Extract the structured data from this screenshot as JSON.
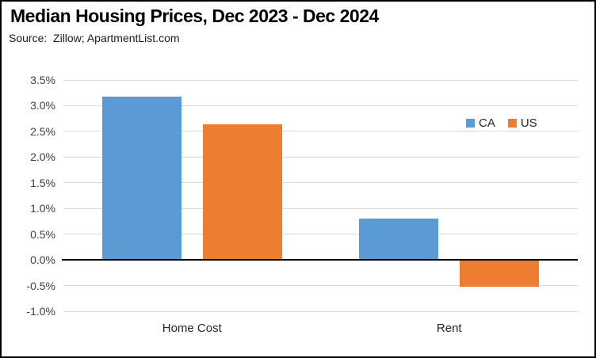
{
  "header": {
    "title": "Median Housing Prices, Dec 2023 - Dec 2024",
    "source": "Source:  Zillow; ApartmentList.com"
  },
  "chart_data": {
    "type": "bar",
    "title": "Median Housing Prices, Dec 2023 - Dec 2024",
    "subtitle": "Source: Zillow; ApartmentList.com",
    "categories": [
      "Home Cost",
      "Rent"
    ],
    "series": [
      {
        "name": "CA",
        "color": "#5B9BD5",
        "values": [
          3.17,
          0.8
        ]
      },
      {
        "name": "US",
        "color": "#ED7D31",
        "values": [
          2.63,
          -0.5
        ]
      }
    ],
    "ylim": [
      -1.0,
      3.5
    ],
    "ytick_step": 0.5,
    "ytick_format": "0.0%",
    "xlabel": "",
    "ylabel": "",
    "grid": true,
    "legend_position": "upper-right-inside",
    "colors": {
      "gridline": "#D9D9D9",
      "zero_line": "#000000",
      "axis_text": "#404040",
      "background": "#FFFFFF",
      "border": "#000000"
    }
  }
}
